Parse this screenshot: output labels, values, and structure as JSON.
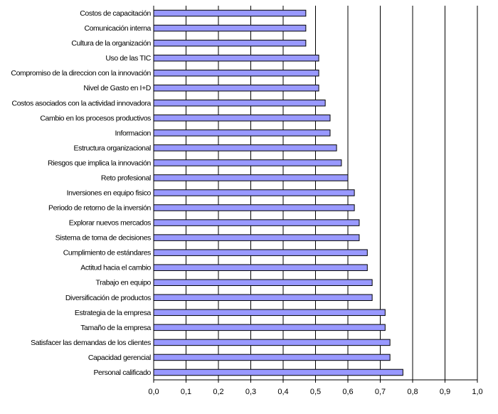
{
  "chart_data": {
    "type": "bar",
    "orientation": "horizontal",
    "categories": [
      "Costos de capacitación",
      "Comunicación interna",
      "Cultura de la organización",
      "Uso de las TIC",
      "Compromiso de la direccion con la innovación",
      "Nivel de Gasto en I+D",
      "Costos asociados con la actividad innovadora",
      "Cambio en los procesos productivos",
      "Informacion",
      "Estructura organizacional",
      "Riesgos que implica la innovación",
      "Reto profesional",
      "Inversiones en equipo fisico",
      "Periodo de retorno de la inversión",
      "Explorar nuevos mercados",
      "Sistema de toma de decisiones",
      "Cumplimiento de estándares",
      "Actitud hacia el cambio",
      "Trabajo en equipo",
      "Diversificación de productos",
      "Estrategia de la empresa",
      "Tamaño de la empresa",
      "Satisfacer las demandas de los clientes",
      "Capacidad gerencial",
      "Personal calificado"
    ],
    "values": [
      0.47,
      0.47,
      0.47,
      0.51,
      0.51,
      0.51,
      0.53,
      0.545,
      0.545,
      0.565,
      0.58,
      0.6,
      0.62,
      0.62,
      0.635,
      0.635,
      0.66,
      0.66,
      0.675,
      0.675,
      0.715,
      0.715,
      0.73,
      0.73,
      0.77
    ],
    "xlim": [
      0,
      1.0
    ],
    "xticks": [
      "0,0",
      "0,1",
      "0,2",
      "0,3",
      "0,4",
      "0,5",
      "0,6",
      "0,7",
      "0,8",
      "0,9",
      "1,0"
    ],
    "grid": true,
    "legend": "none",
    "colors": {
      "bar_fill": "#9999ff",
      "bar_stroke": "#000000",
      "grid": "#000000"
    }
  }
}
